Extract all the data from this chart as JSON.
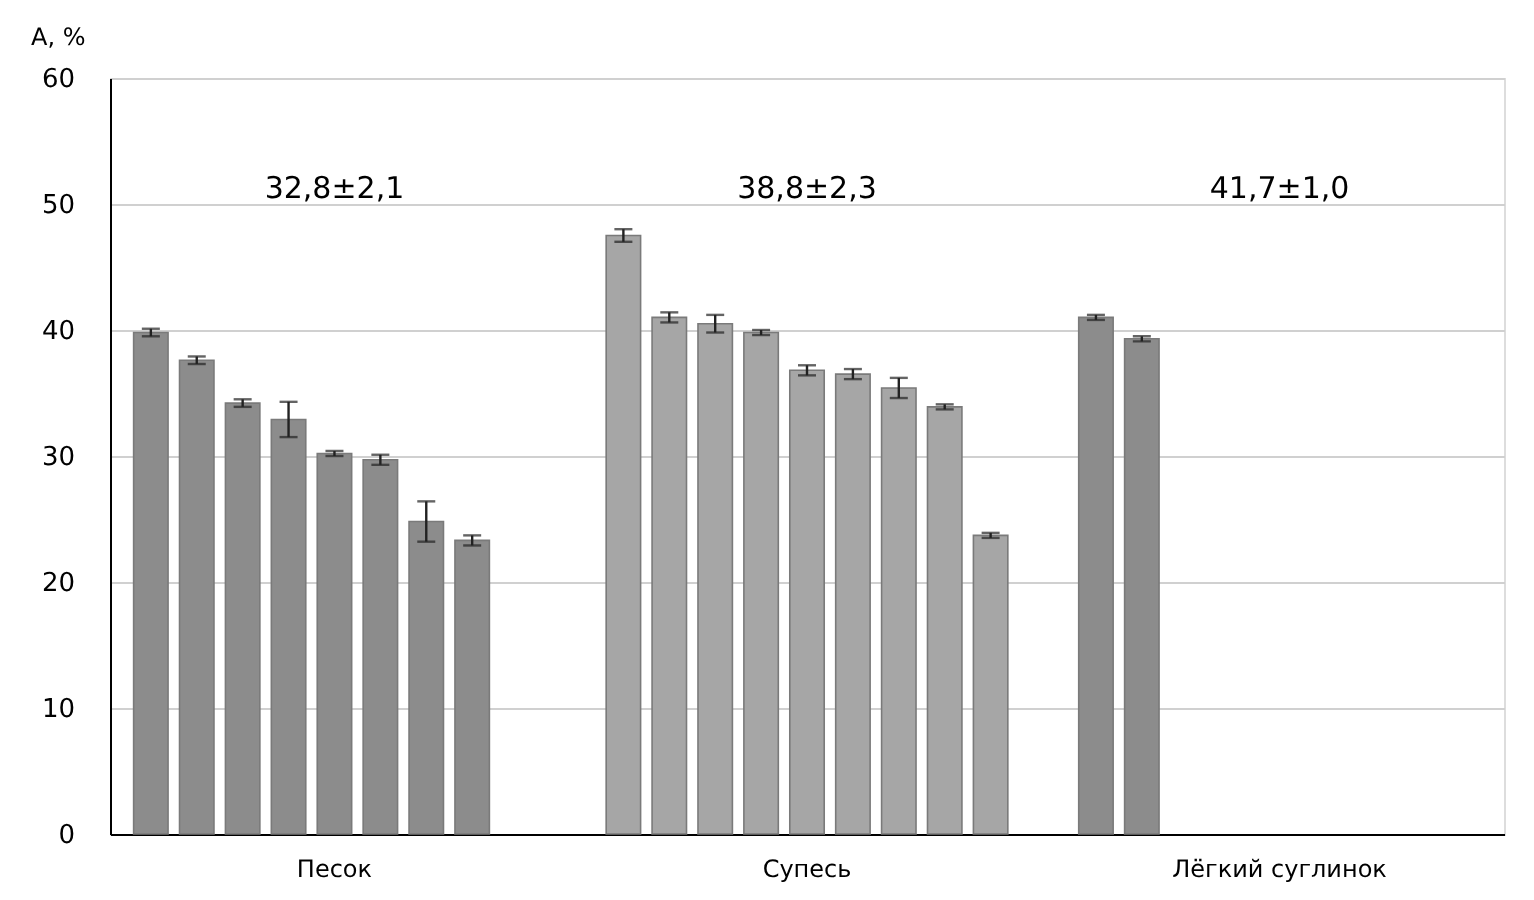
{
  "chart_data": {
    "type": "bar",
    "ylabel": "A, %",
    "categories": [
      "Песок",
      "Супесь",
      "Лёгкий суглинок"
    ],
    "series": [
      {
        "colors": [
          "#8c8c8c",
          "#a6a6a6",
          "#8c8c8c"
        ],
        "values": [
          39.8,
          47.5,
          41.0
        ],
        "errors": [
          0.3,
          0.5,
          0.2
        ]
      },
      {
        "colors": [
          "#8c8c8c",
          "#a6a6a6",
          "#8c8c8c"
        ],
        "values": [
          37.6,
          41.0,
          39.3
        ],
        "errors": [
          0.3,
          0.4,
          0.2
        ]
      },
      {
        "colors": [
          "#8c8c8c",
          "#a6a6a6",
          "#8c8c8c"
        ],
        "values": [
          34.2,
          40.5,
          null
        ],
        "errors": [
          0.3,
          0.7,
          null
        ]
      },
      {
        "colors": [
          "#8c8c8c",
          "#a6a6a6",
          "#8c8c8c"
        ],
        "values": [
          32.9,
          39.8,
          null
        ],
        "errors": [
          1.4,
          0.2,
          null
        ]
      },
      {
        "colors": [
          "#8c8c8c",
          "#a6a6a6",
          "#8c8c8c"
        ],
        "values": [
          30.2,
          36.8,
          null
        ],
        "errors": [
          0.2,
          0.4,
          null
        ]
      },
      {
        "colors": [
          "#8c8c8c",
          "#a6a6a6",
          "#8c8c8c"
        ],
        "values": [
          29.7,
          36.5,
          null
        ],
        "errors": [
          0.4,
          0.4,
          null
        ]
      },
      {
        "colors": [
          "#8c8c8c",
          "#a6a6a6",
          "#8c8c8c"
        ],
        "values": [
          24.8,
          35.4,
          null
        ],
        "errors": [
          1.6,
          0.8,
          null
        ]
      },
      {
        "colors": [
          "#8c8c8c",
          "#a6a6a6",
          "#8c8c8c"
        ],
        "values": [
          23.3,
          33.9,
          null
        ],
        "errors": [
          0.4,
          0.2,
          null
        ]
      },
      {
        "colors": [
          "#8c8c8c",
          "#a6a6a6",
          "#8c8c8c"
        ],
        "values": [
          null,
          23.7,
          null
        ],
        "errors": [
          null,
          0.2,
          null
        ]
      }
    ],
    "ylim": [
      0,
      60
    ],
    "yticks": [
      0,
      10,
      20,
      30,
      40,
      50,
      60
    ],
    "grid": "y",
    "annotations": [
      "32,8±2,1",
      "38,8±2,3",
      "41,7±1,0"
    ]
  }
}
